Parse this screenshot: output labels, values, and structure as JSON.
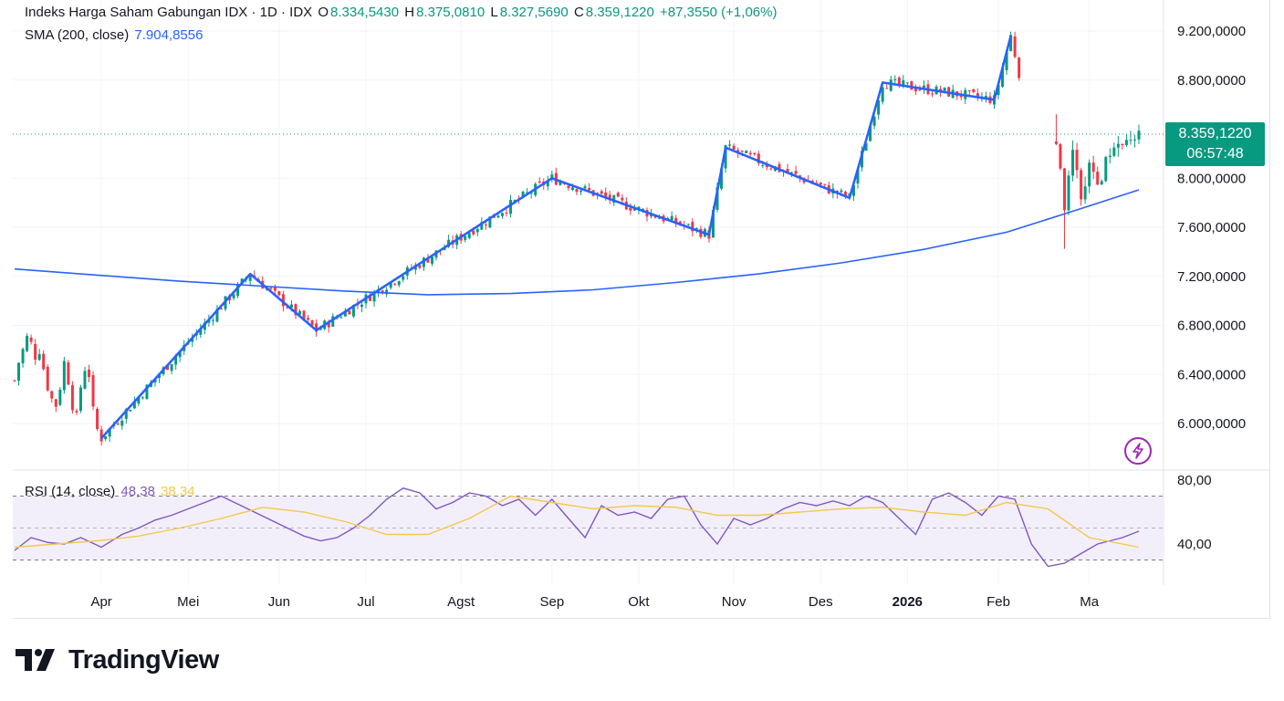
{
  "legend": {
    "title": "Indeks Harga Saham Gabungan IDX · 1D · IDX",
    "o_label": "O",
    "o_value": "8.334,5430",
    "h_label": "H",
    "h_value": "8.375,0810",
    "l_label": "L",
    "l_value": "8.327,5690",
    "c_label": "C",
    "c_value": "8.359,1220",
    "change": "+87,3550 (+1,06%)",
    "sma_label": "SMA (200, close)",
    "sma_value": "7.904,8556"
  },
  "rsi_legend": {
    "label": "RSI (14, close)",
    "rsi_value": "48,38",
    "ma_value": "38,34"
  },
  "price_tag": {
    "price": "8.359,1220",
    "countdown": "06:57:48"
  },
  "brand": {
    "name": "TradingView"
  },
  "colors": {
    "up": "#089981",
    "down": "#f23645",
    "sma": "#2962ff",
    "zigzag": "#2962ff",
    "rsi": "#7e57c2",
    "rsi_ma": "#f2c94c",
    "band": "#f3effa"
  },
  "icons": {
    "lightning": "lightning-icon",
    "logo": "tradingview-logo-icon"
  },
  "chart_data": [
    {
      "type": "candlestick",
      "title": "Indeks Harga Saham Gabungan IDX",
      "yaxis": {
        "ticks": [
          "9.200,0000",
          "8.800,0000",
          "8.000,0000",
          "7.600,0000",
          "7.200,0000",
          "6.800,0000",
          "6.400,0000",
          "6.000,0000"
        ],
        "tick_values": [
          9200,
          8800,
          8000,
          7600,
          7200,
          6800,
          6400,
          6000
        ],
        "range": [
          5800,
          9300
        ]
      },
      "xaxis": {
        "ticks": [
          "Apr",
          "Mei",
          "Jun",
          "Jul",
          "Agst",
          "Sep",
          "Okt",
          "Nov",
          "Des",
          "2026",
          "Feb",
          "Ma"
        ],
        "tick_positions": [
          21,
          42,
          64,
          85,
          108,
          130,
          151,
          174,
          195,
          216,
          238,
          260
        ]
      },
      "grid": true,
      "last_price": 8359.122,
      "zigzag": {
        "index": [
          21,
          57,
          73,
          130,
          168,
          172,
          202,
          210,
          237,
          241
        ],
        "value": [
          5880,
          7220,
          6760,
          8000,
          7540,
          8250,
          7840,
          8780,
          8640,
          9160
        ]
      },
      "series": [
        {
          "name": "SMA (200, close)",
          "type": "line",
          "index": [
            0,
            20,
            40,
            60,
            80,
            100,
            120,
            140,
            160,
            180,
            200,
            220,
            240,
            255,
            272
          ],
          "values": [
            7260,
            7210,
            7160,
            7120,
            7080,
            7050,
            7060,
            7090,
            7150,
            7220,
            7310,
            7420,
            7560,
            7720,
            7905
          ]
        }
      ]
    },
    {
      "type": "line",
      "title": "RSI (14, close)",
      "yaxis": {
        "ticks": [
          "80,00",
          "40,00"
        ],
        "tick_values": [
          80,
          40
        ],
        "range": [
          25,
          85
        ]
      },
      "bands": [
        70,
        30
      ],
      "series": [
        {
          "name": "RSI",
          "index": [
            0,
            4,
            8,
            12,
            16,
            21,
            26,
            30,
            34,
            38,
            42,
            46,
            50,
            54,
            58,
            62,
            66,
            70,
            74,
            78,
            82,
            86,
            90,
            94,
            98,
            102,
            106,
            110,
            114,
            118,
            122,
            126,
            130,
            134,
            138,
            142,
            146,
            150,
            154,
            158,
            162,
            166,
            170,
            174,
            178,
            182,
            186,
            190,
            194,
            198,
            202,
            206,
            210,
            214,
            218,
            222,
            226,
            230,
            234,
            238,
            242,
            246,
            250,
            254,
            258,
            262,
            268,
            272
          ],
          "values": [
            36,
            44,
            41,
            40,
            44,
            38,
            46,
            50,
            55,
            58,
            62,
            66,
            70,
            65,
            60,
            55,
            50,
            45,
            42,
            44,
            50,
            58,
            68,
            75,
            72,
            62,
            66,
            72,
            70,
            64,
            68,
            58,
            68,
            56,
            44,
            64,
            58,
            60,
            56,
            68,
            70,
            52,
            40,
            56,
            52,
            56,
            62,
            66,
            64,
            67,
            64,
            70,
            66,
            56,
            46,
            68,
            72,
            66,
            58,
            70,
            68,
            40,
            26,
            28,
            34,
            40,
            44,
            48
          ]
        },
        {
          "name": "RSI MA",
          "index": [
            0,
            10,
            20,
            30,
            40,
            50,
            60,
            70,
            80,
            90,
            100,
            110,
            120,
            130,
            140,
            150,
            160,
            170,
            180,
            190,
            200,
            210,
            220,
            230,
            240,
            250,
            260,
            272
          ],
          "values": [
            38,
            40,
            42,
            45,
            50,
            56,
            63,
            60,
            54,
            46,
            46,
            56,
            70,
            66,
            62,
            64,
            63,
            58,
            58,
            60,
            62,
            63,
            60,
            58,
            66,
            62,
            44,
            38
          ]
        }
      ]
    }
  ]
}
